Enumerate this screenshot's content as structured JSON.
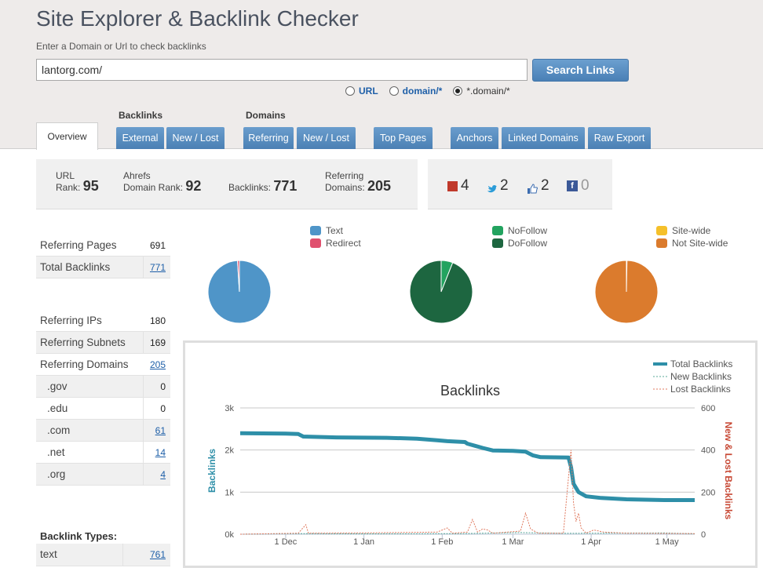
{
  "header": {
    "title": "Site Explorer & Backlink Checker",
    "subtitle": "Enter a Domain or Url to check backlinks",
    "search_value": "lantorg.com/",
    "search_button": "Search Links",
    "modes": [
      {
        "label": "URL",
        "selected": false
      },
      {
        "label": "domain/*",
        "selected": false
      },
      {
        "label": "*.domain/*",
        "selected": true
      }
    ]
  },
  "nav": {
    "overview": "Overview",
    "backlinks_group": "Backlinks",
    "domains_group": "Domains",
    "buttons": {
      "external": "External",
      "bl_new_lost": "New / Lost",
      "referring": "Referring",
      "dom_new_lost": "New / Lost",
      "top_pages": "Top Pages",
      "anchors": "Anchors",
      "linked_domains": "Linked Domains",
      "raw_export": "Raw Export"
    }
  },
  "stats": {
    "url_rank_label1": "URL",
    "url_rank_label2": "Rank:",
    "url_rank": "95",
    "domain_rank_label1": "Ahrefs",
    "domain_rank_label2": "Domain Rank:",
    "domain_rank": "92",
    "backlinks_label": "Backlinks:",
    "backlinks": "771",
    "ref_domains_label1": "Referring",
    "ref_domains_label2": "Domains:",
    "ref_domains": "205"
  },
  "social": {
    "google_plus": "4",
    "twitter": "2",
    "likes": "2",
    "facebook": "0"
  },
  "table1": [
    {
      "label": "Referring Pages",
      "value": "691",
      "link": false
    },
    {
      "label": "Total Backlinks",
      "value": "771",
      "link": true
    }
  ],
  "table2": [
    {
      "label": "Referring IPs",
      "value": "180",
      "link": false
    },
    {
      "label": "Referring Subnets",
      "value": "169",
      "link": false
    },
    {
      "label": "Referring Domains",
      "value": "205",
      "link": true
    },
    {
      "label": ".gov",
      "value": "0",
      "link": false
    },
    {
      "label": ".edu",
      "value": "0",
      "link": false
    },
    {
      "label": ".com",
      "value": "61",
      "link": true
    },
    {
      "label": ".net",
      "value": "14",
      "link": true
    },
    {
      "label": ".org",
      "value": "4",
      "link": true
    }
  ],
  "backlink_types": {
    "title": "Backlink Types:",
    "rows": [
      {
        "label": "text",
        "value": "761"
      }
    ]
  },
  "chart_data": [
    {
      "type": "pie",
      "title": "",
      "labels": [
        "Text",
        "Redirect"
      ],
      "values": [
        99,
        1
      ],
      "colors": [
        "#4f95c8",
        "#e0506e"
      ]
    },
    {
      "type": "pie",
      "title": "",
      "labels": [
        "NoFollow",
        "DoFollow"
      ],
      "values": [
        6,
        94
      ],
      "colors": [
        "#22a35f",
        "#1d6640"
      ]
    },
    {
      "type": "pie",
      "title": "",
      "labels": [
        "Site-wide",
        "Not Site-wide"
      ],
      "values": [
        0.3,
        99.7
      ],
      "colors": [
        "#f5c02a",
        "#db7b2d"
      ]
    },
    {
      "type": "line",
      "title": "Backlinks",
      "ylabel": "Backlinks",
      "y2label": "New & Lost Backlinks",
      "ylim": [
        0,
        3000
      ],
      "y2lim": [
        0,
        600
      ],
      "yticks": [
        "0k",
        "1k",
        "2k",
        "3k"
      ],
      "y2ticks": [
        "0",
        "200",
        "400",
        "600"
      ],
      "xticks": [
        "1 Dec",
        "1 Jan",
        "1 Feb",
        "1 Mar",
        "1 Apr",
        "1 May"
      ],
      "x_range_days": [
        -18,
        162
      ],
      "legend": "top-right",
      "series": [
        {
          "name": "Total Backlinks",
          "color": "#2e8fa8",
          "axis": "left",
          "points": [
            [
              -18,
              2400
            ],
            [
              0,
              2390
            ],
            [
              5,
              2380
            ],
            [
              7,
              2320
            ],
            [
              20,
              2300
            ],
            [
              40,
              2290
            ],
            [
              52,
              2270
            ],
            [
              60,
              2230
            ],
            [
              64,
              2210
            ],
            [
              71,
              2190
            ],
            [
              72,
              2150
            ],
            [
              75,
              2100
            ],
            [
              78,
              2050
            ],
            [
              82,
              1990
            ],
            [
              90,
              1980
            ],
            [
              95,
              1960
            ],
            [
              98,
              1870
            ],
            [
              101,
              1830
            ],
            [
              112,
              1820
            ],
            [
              113,
              1600
            ],
            [
              114,
              1200
            ],
            [
              116,
              1000
            ],
            [
              119,
              900
            ],
            [
              125,
              860
            ],
            [
              135,
              830
            ],
            [
              150,
              810
            ],
            [
              162,
              810
            ]
          ]
        },
        {
          "name": "New Backlinks",
          "color": "#5aa89a",
          "axis": "right",
          "points": [
            [
              -18,
              0
            ],
            [
              5,
              3
            ],
            [
              30,
              2
            ],
            [
              70,
              3
            ],
            [
              93,
              8
            ],
            [
              110,
              4
            ],
            [
              150,
              6
            ],
            [
              162,
              2
            ]
          ]
        },
        {
          "name": "Lost Backlinks",
          "color": "#e07a5f",
          "axis": "right",
          "points": [
            [
              -18,
              0
            ],
            [
              5,
              5
            ],
            [
              8,
              45
            ],
            [
              9,
              5
            ],
            [
              30,
              6
            ],
            [
              60,
              10
            ],
            [
              64,
              30
            ],
            [
              66,
              5
            ],
            [
              72,
              10
            ],
            [
              74,
              70
            ],
            [
              76,
              10
            ],
            [
              78,
              25
            ],
            [
              80,
              20
            ],
            [
              82,
              5
            ],
            [
              93,
              15
            ],
            [
              95,
              100
            ],
            [
              97,
              25
            ],
            [
              100,
              5
            ],
            [
              110,
              5
            ],
            [
              113,
              400
            ],
            [
              114,
              150
            ],
            [
              115,
              60
            ],
            [
              116,
              100
            ],
            [
              117,
              30
            ],
            [
              119,
              5
            ],
            [
              122,
              20
            ],
            [
              126,
              10
            ],
            [
              135,
              5
            ],
            [
              162,
              3
            ]
          ]
        }
      ]
    }
  ]
}
